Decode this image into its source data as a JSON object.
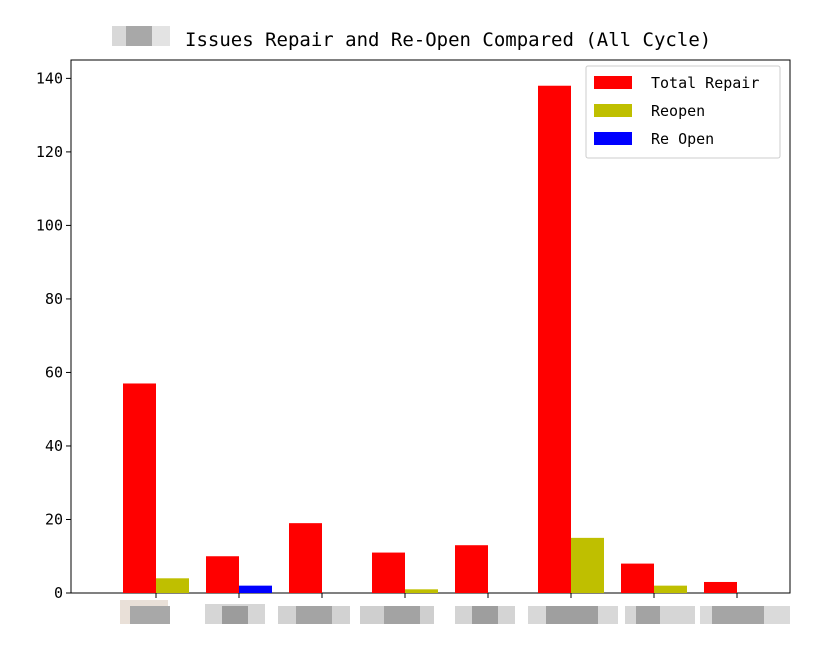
{
  "chart_data": {
    "type": "bar",
    "title": "Issues Repair and Re-Open Compared (All Cycle)",
    "xlabel": "",
    "ylabel": "",
    "ylim": [
      0,
      145
    ],
    "yticks": [
      0,
      20,
      40,
      60,
      80,
      100,
      120,
      140
    ],
    "grid": false,
    "legend_position": "top-right",
    "categories_blurred": true,
    "categories": [
      "",
      "",
      "",
      "",
      "",
      "",
      "",
      ""
    ],
    "series": [
      {
        "name": "Total Repair",
        "color": "#ff0000",
        "values": [
          57,
          10,
          19,
          11,
          13,
          138,
          8,
          3
        ]
      },
      {
        "name": "Reopen",
        "color": "#bfbf00",
        "values": [
          4,
          1,
          0,
          1,
          0,
          15,
          2,
          0
        ]
      },
      {
        "name": "Re Open",
        "color": "#0000ff",
        "values": [
          0,
          2,
          0,
          0,
          0,
          0,
          0,
          0
        ]
      }
    ]
  },
  "colors": {
    "axis": "#000000",
    "background": "#ffffff",
    "blur_primary": "#a6a6a6",
    "blur_secondary": "#d0d0d0"
  }
}
